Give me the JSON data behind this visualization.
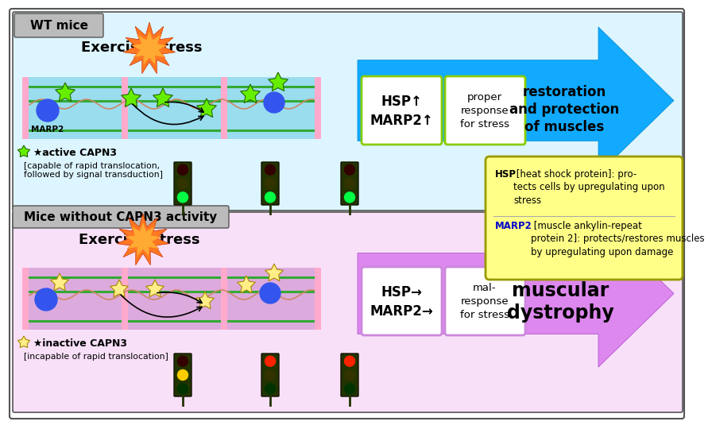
{
  "fig_width": 8.55,
  "fig_height": 5.21,
  "bg_color": "#ffffff",
  "wt_label": "WT mice",
  "wt_title": "Exercise stress",
  "wt_box1_text": "HSP↑\nMARP2↑",
  "wt_box2_text": "proper\nresponse\nfor stress",
  "wt_arrow_text": "restoration\nand protection\nof muscles",
  "mut_label": "Mice without CAPN3 activity",
  "mut_title": "Exercise stress",
  "mut_box1_text": "HSP→\nMARP2→",
  "mut_box2_text": "mal-\nresponse\nfor stress",
  "mut_arrow_text": "muscular\ndystrophy",
  "active_label": "★active CAPN3",
  "active_sub1": "[capable of rapid translocation,",
  "active_sub2": "followed by signal transduction]",
  "inactive_label": "★inactive CAPN3",
  "inactive_sub": "[incapable of rapid translocation]",
  "star_color_active": "#66ee00",
  "star_color_inactive": "#ffee88",
  "star_ec_active": "#226600",
  "star_ec_inactive": "#aa8800",
  "blue_circle_color": "#3355ee",
  "marp2_label": "MARP2",
  "legend_bg": "#ffff88",
  "legend_border": "#999900",
  "legend_hsp_text": " [heat shock protein]: pro-\ntects cells by upregulating upon\nstress",
  "legend_marp2_text": " [muscle ankylin-repeat\nprotein 2]: protects/restores muscles\nby upregulating upon damage",
  "legend_marp2_color": "#0000cc",
  "wt_arrow_color": "#11aaff",
  "wt_arrow_ec": "#0088cc",
  "mut_arrow_color": "#dd88ee",
  "mut_arrow_ec": "#aa44cc",
  "wt_muscle_bg": "#99ddee",
  "mut_muscle_bg": "#ddaadd",
  "wt_panel_bg": "#ddf5ff",
  "mut_panel_bg": "#f8e0f8",
  "wt_box_border": "#88cc00",
  "mut_box_border": "#cc88dd",
  "outer_border": "#555555",
  "label_box_bg": "#bbbbbb",
  "green_line_color": "#33aa33",
  "pink_col_color": "#ffaacc",
  "wavy_color": "#cc8866",
  "expl_outer": "#ff7722",
  "expl_inner": "#ffaa33",
  "expl_ec": "#cc3300",
  "tl_housing": "#223300",
  "tl_ec": "#111100",
  "tl_green": "#00ff44",
  "tl_red": "#ff2200",
  "tl_yellow": "#ffcc00",
  "tl_dark_green": "#003300",
  "tl_dark_red": "#330000",
  "tl_dark_yellow": "#333300"
}
